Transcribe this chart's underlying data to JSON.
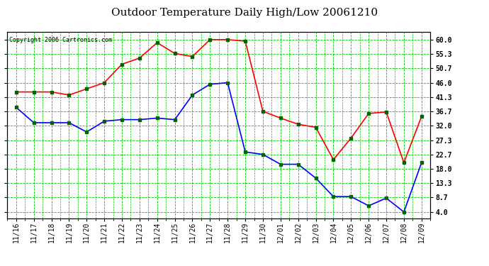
{
  "title": "Outdoor Temperature Daily High/Low 20061210",
  "copyright_text": "Copyright 2006 Cartronics.com",
  "x_labels": [
    "11/16",
    "11/17",
    "11/18",
    "11/19",
    "11/20",
    "11/21",
    "11/22",
    "11/23",
    "11/24",
    "11/25",
    "11/26",
    "11/27",
    "11/28",
    "11/29",
    "11/30",
    "12/01",
    "12/02",
    "12/03",
    "12/04",
    "12/05",
    "12/06",
    "12/07",
    "12/08",
    "12/09"
  ],
  "high_temps": [
    43.0,
    43.0,
    43.0,
    42.0,
    44.0,
    46.0,
    52.0,
    54.0,
    59.0,
    55.5,
    54.5,
    60.0,
    60.0,
    59.5,
    36.7,
    34.5,
    32.5,
    31.5,
    21.0,
    28.0,
    36.0,
    36.5,
    20.0,
    35.0
  ],
  "low_temps": [
    38.0,
    33.0,
    33.0,
    33.0,
    30.0,
    33.5,
    34.0,
    34.0,
    34.5,
    34.0,
    42.0,
    45.5,
    46.0,
    23.5,
    22.7,
    19.5,
    19.5,
    15.0,
    9.0,
    9.0,
    6.0,
    8.5,
    4.0,
    20.0
  ],
  "high_color": "#ff0000",
  "low_color": "#0000ff",
  "marker_color": "#006400",
  "grid_color": "#00cc00",
  "bg_color": "#ffffff",
  "border_color": "#000000",
  "title_fontsize": 11,
  "copyright_fontsize": 6,
  "yticks": [
    4.0,
    8.7,
    13.3,
    18.0,
    22.7,
    27.3,
    32.0,
    36.7,
    41.3,
    46.0,
    50.7,
    55.3,
    60.0
  ],
  "ylim": [
    2.0,
    62.5
  ],
  "tick_label_fontsize": 7
}
